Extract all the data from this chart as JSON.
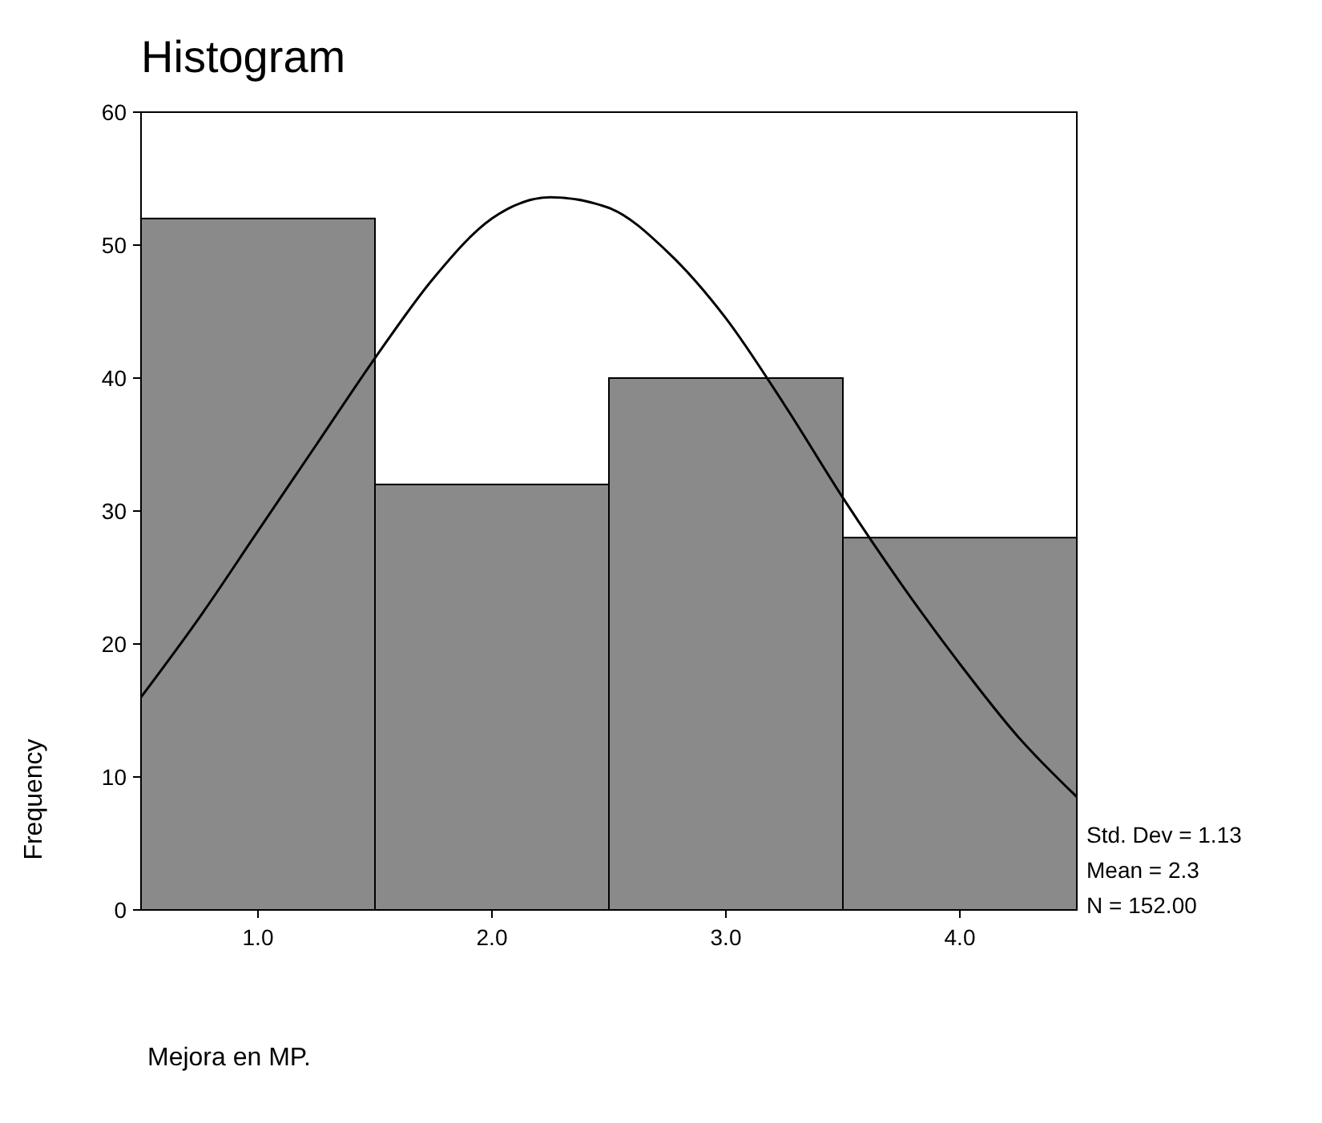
{
  "chart_data": {
    "type": "histogram",
    "title": "Histogram",
    "xlabel": "Mejora en MP.",
    "ylabel": "Frequency",
    "bins": [
      0.5,
      1.5,
      2.5,
      3.5,
      4.5
    ],
    "series": [
      {
        "color": "#8a8a8a",
        "values": [
          52,
          32,
          40,
          28
        ]
      },
      {
        "type": "line",
        "color": "#000000",
        "x": [
          0.5,
          0.75,
          1.0,
          1.25,
          1.5,
          1.75,
          2.0,
          2.25,
          2.5,
          2.75,
          3.0,
          3.25,
          3.5,
          3.75,
          4.0,
          4.25,
          4.5
        ],
        "values": [
          16,
          22,
          28.5,
          35,
          41.5,
          47.5,
          52,
          53.6,
          52.8,
          49.5,
          44.5,
          38,
          31,
          24.5,
          18.5,
          13,
          8.5
        ]
      }
    ],
    "xlim": [
      0.5,
      4.5
    ],
    "ylim": [
      0,
      60
    ],
    "xticks": [
      {
        "value": 1,
        "label": "1.0"
      },
      {
        "value": 2,
        "label": "2.0"
      },
      {
        "value": 3,
        "label": "3.0"
      },
      {
        "value": 4,
        "label": "4.0"
      }
    ],
    "yticks": [
      0,
      10,
      20,
      30,
      40,
      50,
      60
    ],
    "annotations": [
      "Std. Dev = 1.13",
      "Mean = 2.3",
      "N = 152.00"
    ]
  }
}
